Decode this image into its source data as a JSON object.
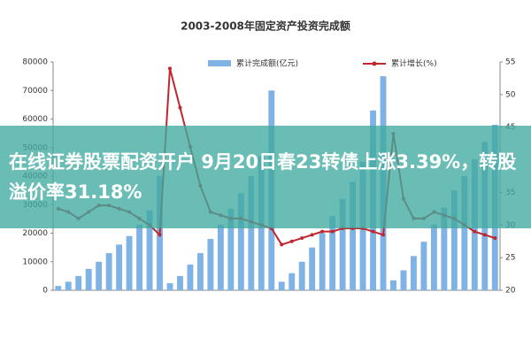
{
  "chart_data": {
    "type": "bar",
    "title": "2003-2008年固定资产投资完成额",
    "categories": [
      null,
      null,
      null,
      null,
      null,
      null,
      null,
      null,
      null,
      null,
      null,
      null,
      null,
      null,
      null,
      null,
      null,
      null,
      null,
      null,
      null,
      null,
      null,
      null,
      null,
      null,
      null,
      null,
      null,
      null,
      null,
      null,
      null,
      null,
      null,
      null,
      null,
      null,
      null,
      null,
      null,
      null,
      null,
      null
    ],
    "series": [
      {
        "name": "累计完成额(亿元)",
        "type": "bar",
        "color": "#7fb2e5",
        "values": [
          1500,
          3000,
          5000,
          7500,
          10000,
          13000,
          16000,
          19000,
          23000,
          28000,
          40000,
          2500,
          5000,
          9000,
          13000,
          18000,
          23000,
          28500,
          34000,
          40000,
          47000,
          70000,
          3000,
          6000,
          10000,
          15000,
          20000,
          26000,
          32000,
          38000,
          45000,
          63000,
          75000,
          3500,
          7000,
          12000,
          17000,
          23000,
          29000,
          35000,
          40000,
          46000,
          52000,
          58000
        ]
      },
      {
        "name": "累计增长(%)",
        "type": "line",
        "axis": "y2",
        "color": "#c0262d",
        "values": [
          32.5,
          32,
          31,
          32,
          33,
          33,
          32.5,
          32,
          31,
          30,
          28.5,
          54,
          48,
          42,
          36,
          32,
          31.5,
          31,
          31,
          30.5,
          30,
          29.5,
          27,
          27.5,
          28,
          28.5,
          29,
          29,
          29.5,
          29.5,
          29.5,
          29,
          28.5,
          44,
          34,
          31,
          31,
          32,
          31.5,
          31,
          30,
          29,
          28.5,
          28
        ]
      }
    ],
    "ylim": [
      0,
      80000
    ],
    "yticks": [
      0,
      10000,
      20000,
      30000,
      40000,
      50000,
      60000,
      70000,
      80000
    ],
    "y2lim": [
      20,
      55
    ],
    "y2ticks": [
      20,
      25,
      30,
      35,
      40,
      45,
      50,
      55
    ]
  },
  "overlay": {
    "headline": "在线证券股票配资开户 9月20日春23转债上涨3.39%，转股溢价率31.18%"
  }
}
